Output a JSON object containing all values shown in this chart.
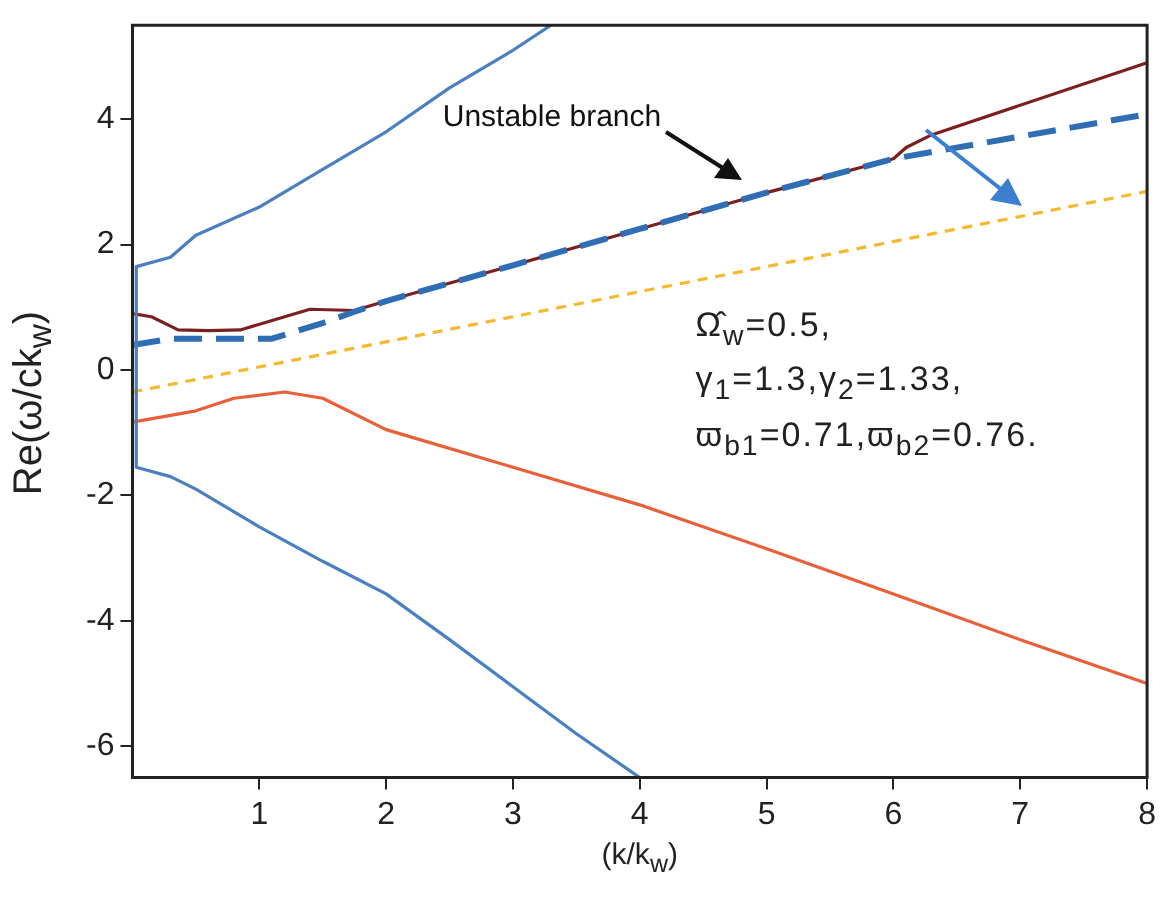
{
  "chart_data": {
    "type": "line",
    "xlabel": "(k/k$_{w}$)",
    "ylabel": "Re(ω/ck$_{w}$)",
    "xlim": [
      0,
      8
    ],
    "xticks": [
      1,
      2,
      3,
      4,
      5,
      6,
      7,
      8
    ],
    "ylim": [
      -6.5,
      5.5
    ],
    "yticks": [
      -6,
      -4,
      -2,
      0,
      2,
      4
    ],
    "grid": false,
    "legend": false,
    "marker": "none",
    "series": [
      {
        "color": "#4a7fc1",
        "line_style": "solid",
        "x": [
          3.3,
          3,
          2.5,
          2,
          1.5,
          1,
          0.5,
          0.3,
          0.03,
          0.03,
          0.3,
          0.5,
          1,
          1.5,
          2,
          2.5,
          3,
          3.5,
          4
        ],
        "values": [
          5.5,
          5.1,
          4.5,
          3.8,
          3.2,
          2.6,
          2.15,
          1.8,
          1.65,
          -1.55,
          -1.7,
          -1.9,
          -2.5,
          -3.05,
          -3.57,
          -4.3,
          -5.05,
          -5.8,
          -6.5
        ]
      },
      {
        "color": "#e8603a",
        "line_style": "solid",
        "x": [
          0,
          0.5,
          0.8,
          1.2,
          1.5,
          2,
          3,
          4,
          5,
          6,
          7,
          8
        ],
        "values": [
          -0.83,
          -0.65,
          -0.45,
          -0.35,
          -0.45,
          -0.95,
          -1.55,
          -2.15,
          -2.85,
          -3.57,
          -4.3,
          -5.0
        ]
      },
      {
        "color": "#f5b82e",
        "line_style": "dotted",
        "x": [
          0,
          8
        ],
        "values": [
          -0.35,
          2.85
        ]
      },
      {
        "color": "#2f6db5",
        "line_style": "dashed",
        "x": [
          0,
          0.3,
          0.8,
          1.1,
          1.5,
          1.75,
          2,
          3,
          4,
          5,
          6,
          8
        ],
        "values": [
          0.4,
          0.5,
          0.5,
          0.5,
          0.75,
          0.93,
          1.1,
          1.67,
          2.25,
          2.83,
          3.37,
          4.08
        ]
      },
      {
        "color": "#7a2020",
        "line_style": "solid",
        "x": [
          0,
          0.15,
          0.36,
          0.6,
          0.85,
          1.2,
          1.4,
          1.75,
          2,
          3,
          4,
          5,
          6,
          6.1,
          6.3,
          8
        ],
        "values": [
          0.9,
          0.85,
          0.64,
          0.63,
          0.64,
          0.85,
          0.97,
          0.95,
          1.1,
          1.67,
          2.25,
          2.83,
          3.37,
          3.55,
          3.75,
          4.9
        ]
      }
    ],
    "annotations": [
      "Unstable branch",
      "Ω̂$_{w}$=0.5,",
      "γ$_{1}$=1.3,γ$_{2}$=1.33,",
      "ϖ$_{b1}$=0.71,ϖ$_{b2}$=0.76."
    ]
  }
}
